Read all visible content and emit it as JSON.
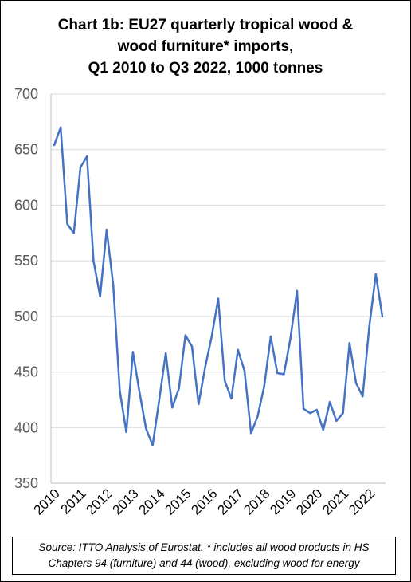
{
  "title": {
    "line1": "Chart 1b: EU27 quarterly tropical wood &",
    "line2": "wood furniture* imports,",
    "line3": "Q1 2010 to Q3 2022, 1000 tonnes"
  },
  "source": {
    "line1": "Source: ITTO Analysis of Eurostat. * includes all wood products in HS",
    "line2": "Chapters 94 (furniture) and 44 (wood), excluding wood for energy"
  },
  "colors": {
    "line": "#4472C4",
    "grid": "#D9D9D9",
    "axis": "#BFBFBF"
  },
  "chart_data": {
    "type": "line",
    "ylim": [
      350,
      700
    ],
    "yticks": [
      350,
      400,
      450,
      500,
      550,
      600,
      650,
      700
    ],
    "xlabels": [
      "2010",
      "2011",
      "2012",
      "2013",
      "2014",
      "2015",
      "2016",
      "2017",
      "2018",
      "2019",
      "2020",
      "2021",
      "2022"
    ],
    "grid": true,
    "series": [
      {
        "quarters": [
          "2010Q1",
          "2010Q2",
          "2010Q3",
          "2010Q4",
          "2011Q1",
          "2011Q2",
          "2011Q3",
          "2011Q4",
          "2012Q1",
          "2012Q2",
          "2012Q3",
          "2012Q4",
          "2013Q1",
          "2013Q2",
          "2013Q3",
          "2013Q4",
          "2014Q1",
          "2014Q2",
          "2014Q3",
          "2014Q4",
          "2015Q1",
          "2015Q2",
          "2015Q3",
          "2015Q4",
          "2016Q1",
          "2016Q2",
          "2016Q3",
          "2016Q4",
          "2017Q1",
          "2017Q2",
          "2017Q3",
          "2017Q4",
          "2018Q1",
          "2018Q2",
          "2018Q3",
          "2018Q4",
          "2019Q1",
          "2019Q2",
          "2019Q3",
          "2019Q4",
          "2020Q1",
          "2020Q2",
          "2020Q3",
          "2020Q4",
          "2021Q1",
          "2021Q2",
          "2021Q3",
          "2021Q4",
          "2022Q1",
          "2022Q2",
          "2022Q3"
        ],
        "values": [
          654,
          670,
          583,
          575,
          634,
          644,
          550,
          518,
          578,
          528,
          433,
          396,
          468,
          432,
          399,
          384,
          424,
          467,
          418,
          435,
          483,
          473,
          421,
          454,
          482,
          516,
          442,
          426,
          470,
          451,
          395,
          410,
          437,
          482,
          449,
          448,
          480,
          523,
          417,
          413,
          416,
          398,
          423,
          406,
          413,
          476,
          440,
          428,
          490,
          538,
          500
        ]
      }
    ]
  }
}
